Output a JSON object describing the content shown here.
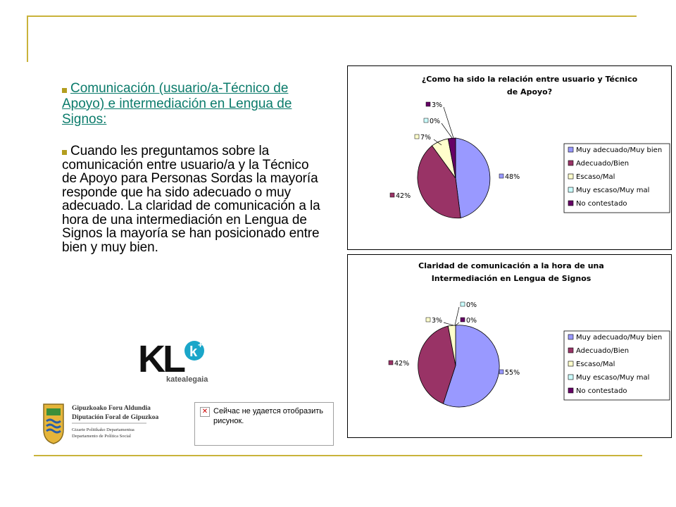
{
  "text": {
    "bullet1": "Comunicación (usuario/a-Técnico de Apoyo) e intermediación en Lengua de Signos:",
    "bullet2": "Cuando les preguntamos sobre la comunicación entre usuario/a y la Técnico de Apoyo para Personas Sordas la mayoría responde que ha sido adecuado o muy adecuado. La claridad de comunicación a la hora de una intermediación en Lengua de Signos la mayoría se han posicionado entre bien y muy bien."
  },
  "logos": {
    "kl_main": "KL",
    "kl_badge": "k",
    "kl_sub": "katealegaia",
    "gip_line1": "Gipuzkoako Foru Aldundia",
    "gip_line2": "Diputación Foral de Gipuzkoa",
    "gip_line3": "Gizarte Politikako Departamentua",
    "gip_line4": "Departamento de Política Social"
  },
  "broken_image": {
    "message": "Сейчас не удается отобразить рисунок."
  },
  "colors": {
    "accent_gold": "#c9b33b",
    "link_teal": "#0b7b6b",
    "s1": "#9999ff",
    "s2": "#993366",
    "s3": "#ffffcc",
    "s4": "#ccffff",
    "s5": "#660066"
  },
  "chart_data": [
    {
      "type": "pie",
      "title": [
        "¿Como ha sido la relación entre usuario y Técnico",
        "de Apoyo?"
      ],
      "categories": [
        "Muy adecuado/Muy bien",
        "Adecuado/Bien",
        "Escaso/Mal",
        "Muy escaso/Muy mal",
        "No contestado"
      ],
      "values": [
        48,
        42,
        7,
        0,
        3
      ],
      "labels": [
        "48%",
        "42%",
        "7%",
        "0%",
        "3%"
      ],
      "legend": "right"
    },
    {
      "type": "pie",
      "title": [
        "Claridad de comunicación a la hora de una",
        "Intermediación en Lengua de Signos"
      ],
      "categories": [
        "Muy adecuado/Muy bien",
        "Adecuado/Bien",
        "Escaso/Mal",
        "Muy escaso/Muy mal",
        "No contestado"
      ],
      "values": [
        55,
        42,
        3,
        0,
        0
      ],
      "labels": [
        "55%",
        "42%",
        "3%",
        "0%",
        "0%"
      ],
      "legend": "right"
    }
  ]
}
